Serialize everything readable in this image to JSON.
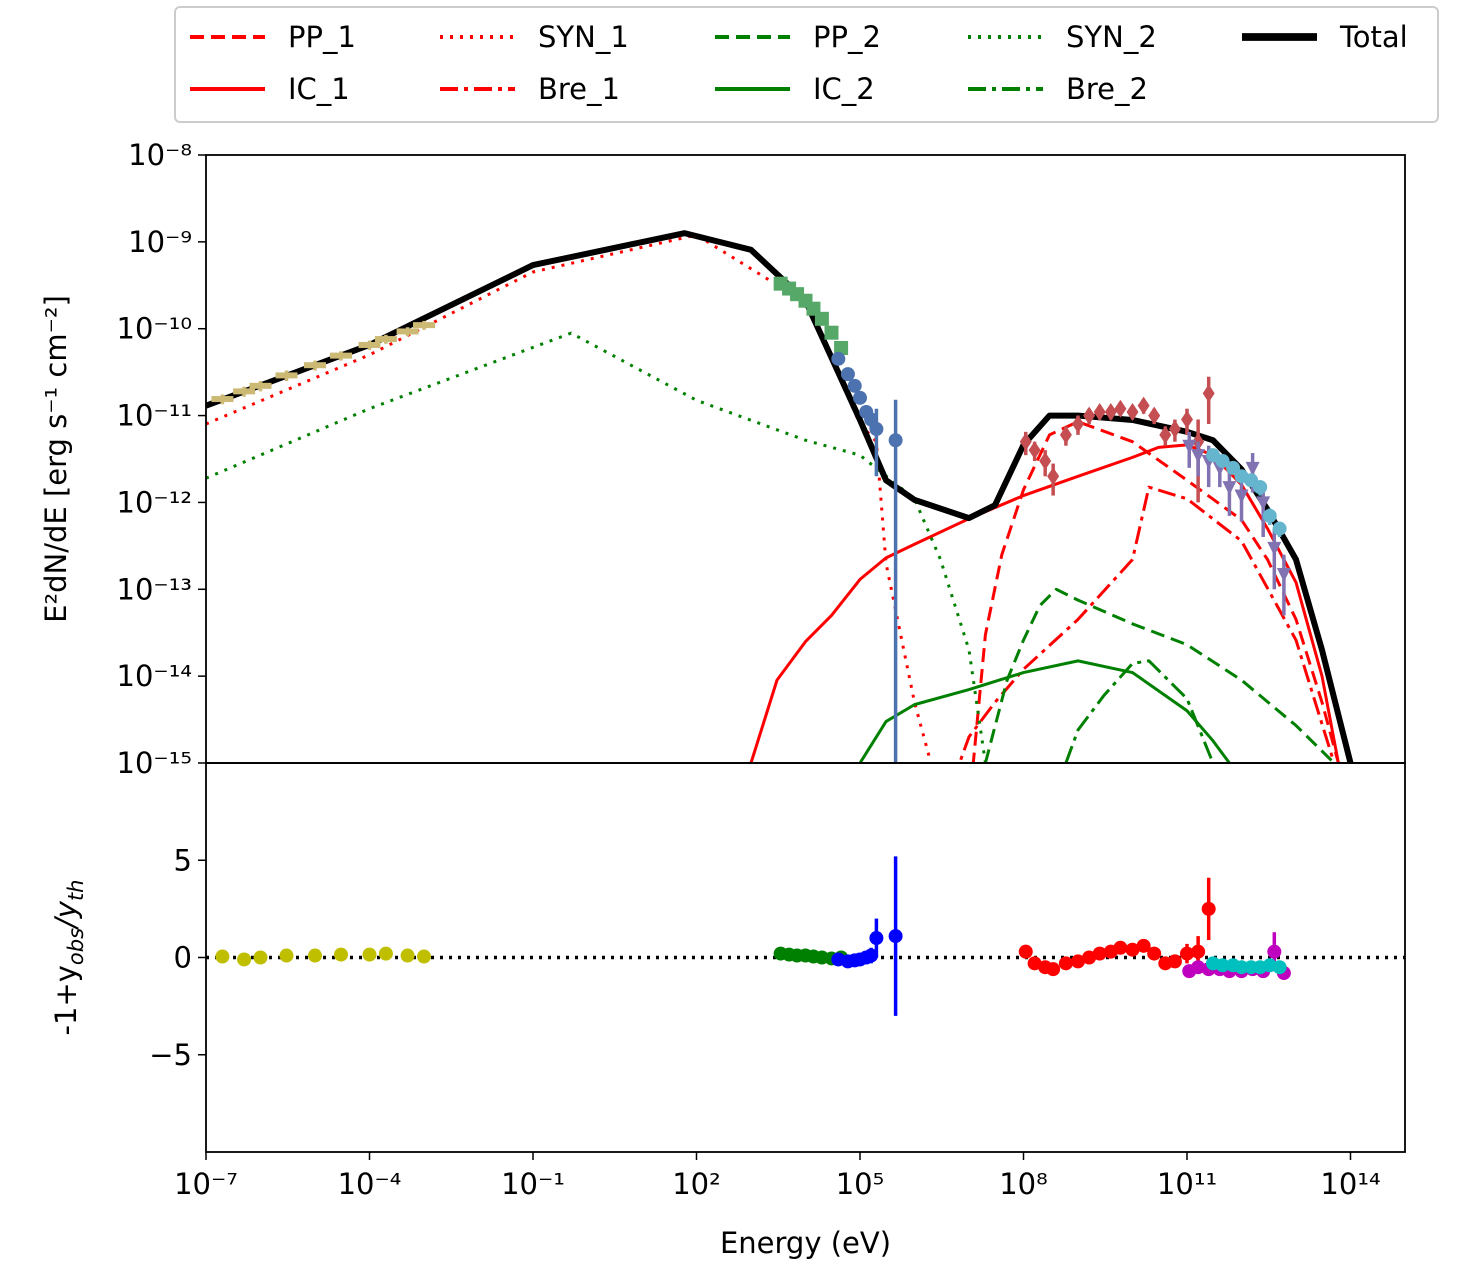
{
  "chart_data": [
    {
      "type": "line",
      "xscale": "log",
      "yscale": "log",
      "legend": "top",
      "ylabel": "E²dN/dE [erg s⁻¹ cm⁻²]",
      "xlim": [
        1e-07,
        1000000000000000.0
      ],
      "ylim": [
        1e-15,
        1e-08
      ],
      "yticks": [
        {
          "value": 1e-08,
          "label": "10⁻⁸"
        },
        {
          "value": 1e-09,
          "label": "10⁻⁹"
        },
        {
          "value": 1e-10,
          "label": "10⁻¹⁰"
        },
        {
          "value": 1e-11,
          "label": "10⁻¹¹"
        },
        {
          "value": 1e-12,
          "label": "10⁻¹²"
        },
        {
          "value": 1e-13,
          "label": "10⁻¹³"
        },
        {
          "value": 1e-14,
          "label": "10⁻¹⁴"
        },
        {
          "value": 1e-15,
          "label": "10⁻¹⁵"
        }
      ],
      "series": [
        {
          "name": "PP_1",
          "color": "#ff0000",
          "linestyle": "--",
          "linewidth": 3,
          "x": [
            10000000.0,
            20000000.0,
            40000000.0,
            100000000.0,
            300000000.0,
            1000000000.0,
            10000000000.0,
            100000000000.0,
            1000000000000.0,
            3000000000000.0,
            10000000000000.0,
            30000000000000.0,
            60000000000000.0
          ],
          "values": [
            3e-16,
            3e-14,
            2.5e-13,
            1.4e-12,
            6e-12,
            8.5e-12,
            5e-12,
            1.8e-12,
            6.3e-13,
            2.2e-13,
            4.5e-14,
            5e-15,
            1e-15
          ]
        },
        {
          "name": "IC_1",
          "color": "#ff0000",
          "linestyle": "-",
          "linewidth": 3,
          "x": [
            1000.0,
            3000.0,
            10000.0,
            30000.0,
            100000.0,
            300000.0,
            1000000.0,
            10000000.0,
            100000000.0,
            1000000000.0,
            10000000000.0,
            30000000000.0,
            100000000000.0,
            300000000000.0,
            1000000000000.0,
            3000000000000.0,
            10000000000000.0,
            30000000000000.0,
            60000000000000.0
          ],
          "values": [
            1e-15,
            9e-15,
            2.5e-14,
            5e-14,
            1.3e-13,
            2.3e-13,
            3.3e-13,
            6.5e-13,
            1.2e-12,
            2e-12,
            3.3e-12,
            4.3e-12,
            4.6e-12,
            3.5e-12,
            1.6e-12,
            5e-13,
            1.2e-13,
            1e-14,
            1e-15
          ]
        },
        {
          "name": "SYN_1",
          "color": "#ff0000",
          "linestyle": ":",
          "linewidth": 3,
          "x": [
            1e-07,
            0.0001,
            0.1,
            100.0,
            10000.0,
            100000.0,
            200000.0,
            300000.0,
            1000000.0,
            2000000.0,
            3000000.0
          ],
          "values": [
            8e-12,
            5e-11,
            4.5e-10,
            1.2e-09,
            2e-10,
            8e-12,
            5e-12,
            2e-13,
            5e-15,
            1e-15,
            1e-16
          ]
        },
        {
          "name": "Bre_1",
          "color": "#ff0000",
          "linestyle": "-.",
          "linewidth": 3,
          "x": [
            5000000.0,
            10000000.0,
            30000000.0,
            100000000.0,
            1000000000.0,
            10000000000.0,
            20000000000.0,
            100000000000.0,
            1000000000000.0,
            10000000000000.0,
            50000000000000.0
          ],
          "values": [
            6e-16,
            2e-15,
            5e-15,
            1.2e-14,
            4.5e-14,
            2.2e-13,
            1.5e-12,
            1.1e-12,
            3.6e-13,
            2.6e-14,
            1e-15
          ]
        },
        {
          "name": "PP_2",
          "color": "#008000",
          "linestyle": "--",
          "linewidth": 3,
          "x": [
            20000000.0,
            50000000.0,
            100000000.0,
            200000000.0,
            400000000.0,
            1000000000.0,
            10000000000.0,
            100000000000.0,
            1000000000000.0,
            10000000000000.0,
            50000000000000.0
          ],
          "values": [
            1e-15,
            9e-15,
            2.6e-14,
            6.5e-14,
            1e-13,
            7.5e-14,
            4e-14,
            2.3e-14,
            9e-15,
            2.7e-15,
            1e-15
          ]
        },
        {
          "name": "IC_2",
          "color": "#008000",
          "linestyle": "-",
          "linewidth": 3,
          "x": [
            100000.0,
            300000.0,
            1000000.0,
            10000000.0,
            100000000.0,
            1000000000.0,
            10000000000.0,
            100000000000.0,
            300000000000.0,
            600000000000.0
          ],
          "values": [
            1e-15,
            3e-15,
            4.7e-15,
            7e-15,
            1.1e-14,
            1.5e-14,
            1.1e-14,
            4e-15,
            1.8e-15,
            1e-15
          ]
        },
        {
          "name": "SYN_2",
          "color": "#008000",
          "linestyle": ":",
          "linewidth": 3,
          "x": [
            1e-07,
            0.0001,
            0.5,
            100.0,
            10000.0,
            100000.0,
            1000000.0,
            3000000.0,
            10000000.0,
            20000000.0,
            30000000.0
          ],
          "values": [
            1.9e-12,
            1.2e-11,
            8.9e-11,
            1.5e-11,
            5.2e-12,
            3.5e-12,
            1.1e-12,
            2.2e-13,
            2e-14,
            1e-15,
            1e-16
          ]
        },
        {
          "name": "Bre_2",
          "color": "#008000",
          "linestyle": "-.",
          "linewidth": 3,
          "x": [
            600000000.0,
            1000000000.0,
            3000000000.0,
            10000000000.0,
            20000000000.0,
            100000000000.0,
            300000000000.0
          ],
          "values": [
            1e-15,
            2.4e-15,
            6e-15,
            1.4e-14,
            1.5e-14,
            5.5e-15,
            1e-15
          ]
        },
        {
          "name": "Total",
          "color": "#000000",
          "linestyle": "-",
          "linewidth": 6,
          "x": [
            1e-07,
            0.0001,
            0.1,
            60.0,
            1000.0,
            10000.0,
            100000.0,
            300000.0,
            1000000.0,
            10000000.0,
            30000000.0,
            100000000.0,
            300000000.0,
            1000000000.0,
            10000000000.0,
            100000000000.0,
            300000000000.0,
            1000000000000.0,
            3000000000000.0,
            10000000000000.0,
            30000000000000.0,
            100000000000000.0
          ],
          "values": [
            1.3e-11,
            6.5e-11,
            5.4e-10,
            1.26e-09,
            8.1e-10,
            2.1e-10,
            8.9e-12,
            1.8e-12,
            1.07e-12,
            6.6e-13,
            9.3e-13,
            4.6e-12,
            1e-11,
            1e-11,
            8.9e-12,
            6.5e-12,
            5.2e-12,
            2.4e-12,
            8.3e-13,
            2.2e-13,
            2e-14,
            1e-15
          ]
        }
      ],
      "points": [
        {
          "color": "#ccb974",
          "marker": "hline",
          "x": [
            2e-07,
            5e-07,
            1e-06,
            3e-06,
            1e-05,
            3e-05,
            0.0001,
            0.0002,
            0.0005,
            0.001
          ],
          "values": [
            1.55e-11,
            1.9e-11,
            2.2e-11,
            2.9e-11,
            3.8e-11,
            4.9e-11,
            6.5e-11,
            7.6e-11,
            9.3e-11,
            1.1e-10
          ],
          "errors": [
            2e-12,
            2.5e-12,
            3e-12,
            4e-12,
            5e-12,
            6e-12,
            8e-12,
            9e-12,
            1.1e-11,
            1.3e-11
          ]
        },
        {
          "color": "#55a868",
          "marker": "square",
          "x": [
            3500.0,
            5000.0,
            7000.0,
            10000.0,
            14000.0,
            20000.0,
            30000.0,
            45000.0
          ],
          "values": [
            3.3e-10,
            2.9e-10,
            2.5e-10,
            2.1e-10,
            1.7e-10,
            1.3e-10,
            9e-11,
            6e-11
          ],
          "errors": [
            3e-11,
            3e-11,
            2.5e-11,
            2e-11,
            1.5e-11,
            1.2e-11,
            9e-12,
            6e-12
          ]
        },
        {
          "color": "#4c72b0",
          "marker": "circle",
          "x": [
            40000.0,
            60000.0,
            80000.0,
            100000.0,
            130000.0,
            160000.0,
            200000.0,
            450000.0
          ],
          "values": [
            4.5e-11,
            3e-11,
            2.2e-11,
            1.6e-11,
            1.1e-11,
            9e-12,
            7e-12,
            5.2e-12
          ],
          "errors": [
            3e-12,
            2e-12,
            2e-12,
            1.5e-12,
            1.5e-12,
            2e-12,
            5e-12,
            1e-11
          ]
        },
        {
          "color": "#c44e52",
          "marker": "diamond",
          "x": [
            110000000.0,
            160000000.0,
            250000000.0,
            350000000.0,
            600000000.0,
            1000000000.0,
            1600000000.0,
            2500000000.0,
            4000000000.0,
            6000000000.0,
            10000000000.0,
            16000000000.0,
            25000000000.0,
            40000000000.0,
            60000000000.0,
            100000000000.0,
            160000000000.0,
            250000000000.0
          ],
          "values": [
            5e-12,
            4e-12,
            3e-12,
            2e-12,
            6e-12,
            8e-12,
            1e-11,
            1.1e-11,
            1.1e-11,
            1.2e-11,
            1.1e-11,
            1.3e-11,
            1e-11,
            6e-12,
            7e-12,
            9e-12,
            5e-12,
            1.8e-11
          ],
          "errors": [
            1.5e-12,
            1e-12,
            1e-12,
            8e-13,
            1.5e-12,
            2e-12,
            2e-12,
            2e-12,
            2e-12,
            2e-12,
            2e-12,
            2.5e-12,
            2e-12,
            1.5e-12,
            2e-12,
            3e-12,
            4e-12,
            1e-11
          ]
        },
        {
          "color": "#8172b2",
          "marker": "triangle_down",
          "x": [
            110000000000.0,
            160000000000.0,
            250000000000.0,
            400000000000.0,
            600000000000.0,
            1000000000000.0,
            1600000000000.0,
            2500000000000.0,
            4000000000000.0,
            6000000000000.0
          ],
          "values": [
            4.5e-12,
            3.5e-12,
            3e-12,
            2.5e-12,
            1.5e-12,
            1.2e-12,
            2.5e-12,
            1e-12,
            3e-13,
            1.5e-13
          ],
          "errors": [
            2e-12,
            1.5e-12,
            1.5e-12,
            1e-12,
            8e-13,
            6e-13,
            1.2e-12,
            6e-13,
            2e-13,
            1e-13
          ]
        },
        {
          "color": "#64b5cd",
          "marker": "circle",
          "x": [
            300000000000.0,
            450000000000.0,
            700000000000.0,
            1000000000000.0,
            1500000000000.0,
            2200000000000.0,
            3300000000000.0,
            5000000000000.0
          ],
          "values": [
            3.5e-12,
            3e-12,
            2.5e-12,
            2e-12,
            1.8e-12,
            1.5e-12,
            7e-13,
            5e-13
          ],
          "errors": [
            3e-13,
            3e-13,
            3e-13,
            3e-13,
            3e-13,
            3e-13,
            1.5e-13,
            1e-13
          ]
        }
      ]
    },
    {
      "type": "scatter",
      "xscale": "log",
      "xlabel": "Energy (eV)",
      "ylabel": [
        "-1+y",
        "obs",
        "/y",
        "th"
      ],
      "xlim": [
        1e-07,
        1000000000000000.0
      ],
      "ylim": [
        -10,
        10
      ],
      "xticks": [
        {
          "value": 1e-07,
          "label": "10⁻⁷"
        },
        {
          "value": 0.0001,
          "label": "10⁻⁴"
        },
        {
          "value": 0.1,
          "label": "10⁻¹"
        },
        {
          "value": 100.0,
          "label": "10²"
        },
        {
          "value": 100000.0,
          "label": "10⁵"
        },
        {
          "value": 100000000.0,
          "label": "10⁸"
        },
        {
          "value": 100000000000.0,
          "label": "10¹¹"
        },
        {
          "value": 100000000000000.0,
          "label": "10¹⁴"
        }
      ],
      "yticks": [
        5,
        0,
        {
          "value": -5,
          "label": "−5"
        }
      ],
      "points": [
        {
          "color": "#bfbf00",
          "marker": "circle",
          "x": [
            2e-07,
            5e-07,
            1e-06,
            3e-06,
            1e-05,
            3e-05,
            0.0001,
            0.0002,
            0.0005,
            0.001
          ],
          "values": [
            0.05,
            -0.1,
            0.0,
            0.1,
            0.1,
            0.15,
            0.15,
            0.2,
            0.1,
            0.05
          ]
        },
        {
          "color": "#008000",
          "marker": "circle",
          "x": [
            3500.0,
            5000.0,
            7000.0,
            10000.0,
            14000.0,
            20000.0,
            30000.0,
            45000.0
          ],
          "values": [
            0.2,
            0.15,
            0.1,
            0.1,
            0.05,
            0.0,
            -0.05,
            0.0
          ]
        },
        {
          "color": "#0000ff",
          "marker": "circle",
          "x": [
            40000.0,
            60000.0,
            80000.0,
            100000.0,
            130000.0,
            160000.0,
            200000.0,
            450000.0
          ],
          "values": [
            -0.1,
            -0.2,
            -0.15,
            -0.1,
            0.0,
            0.1,
            1.0,
            1.1
          ],
          "errors": [
            0.1,
            0.1,
            0.1,
            0.1,
            0.2,
            0.4,
            1.0,
            4.1
          ]
        },
        {
          "color": "#ff0000",
          "marker": "circle",
          "x": [
            110000000.0,
            160000000.0,
            250000000.0,
            350000000.0,
            600000000.0,
            1000000000.0,
            1600000000.0,
            2500000000.0,
            4000000000.0,
            6000000000.0,
            10000000000.0,
            16000000000.0,
            25000000000.0,
            40000000000.0,
            60000000000.0,
            100000000000.0,
            160000000000.0,
            250000000000.0
          ],
          "values": [
            0.3,
            -0.3,
            -0.5,
            -0.6,
            -0.3,
            -0.2,
            0.0,
            0.2,
            0.3,
            0.5,
            0.4,
            0.6,
            0.2,
            -0.3,
            -0.2,
            0.2,
            0.3,
            2.5
          ],
          "errors": [
            0.2,
            0.2,
            0.2,
            0.2,
            0.2,
            0.2,
            0.2,
            0.2,
            0.2,
            0.2,
            0.2,
            0.2,
            0.3,
            0.3,
            0.3,
            0.5,
            0.8,
            1.6
          ]
        },
        {
          "color": "#bf00bf",
          "marker": "circle",
          "x": [
            110000000000.0,
            160000000000.0,
            250000000000.0,
            400000000000.0,
            600000000000.0,
            1000000000000.0,
            1600000000000.0,
            2500000000000.0,
            4000000000000.0,
            6000000000000.0
          ],
          "values": [
            -0.7,
            -0.5,
            -0.6,
            -0.6,
            -0.7,
            -0.7,
            -0.6,
            -0.7,
            0.3,
            -0.8
          ],
          "errors": [
            0.1,
            0.1,
            0.1,
            0.1,
            0.1,
            0.1,
            0.1,
            0.1,
            1.0,
            0.1
          ]
        },
        {
          "color": "#00bfbf",
          "marker": "circle",
          "x": [
            300000000000.0,
            450000000000.0,
            700000000000.0,
            1000000000000.0,
            1500000000000.0,
            2200000000000.0,
            3300000000000.0,
            5000000000000.0
          ],
          "values": [
            -0.3,
            -0.4,
            -0.4,
            -0.5,
            -0.5,
            -0.5,
            -0.4,
            -0.5
          ]
        }
      ]
    }
  ]
}
